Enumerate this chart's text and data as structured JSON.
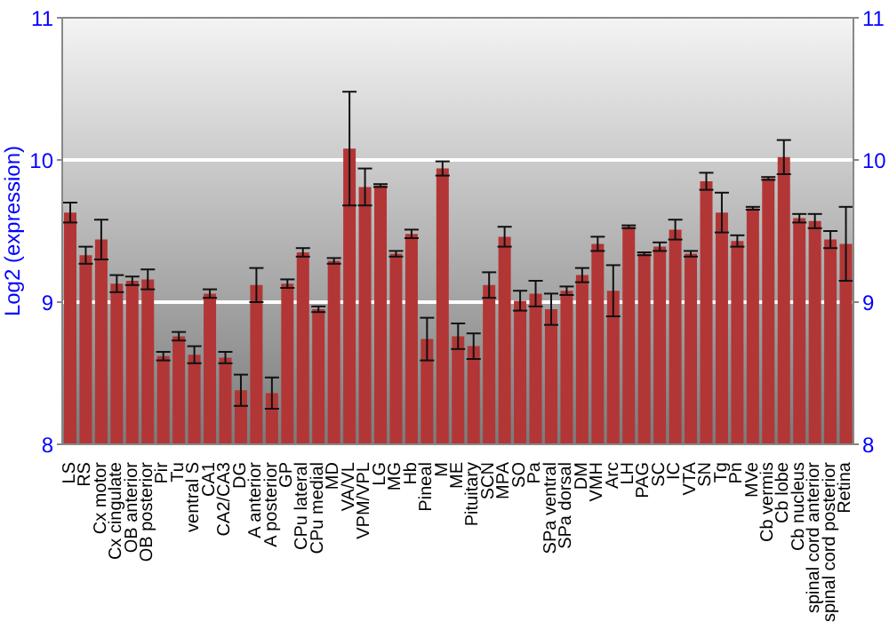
{
  "chart_data": {
    "type": "bar",
    "ylabel": "Log2 (expression)",
    "categories": [
      "LS",
      "RS",
      "Cx motor",
      "Cx cingulate",
      "OB anterior",
      "OB posterior",
      "Pir",
      "Tu",
      "ventral S",
      "CA1",
      "CA2/CA3",
      "DG",
      "A anterior",
      "A posterior",
      "GP",
      "CPu lateral",
      "CPu medial",
      "MD",
      "VA/VL",
      "VPM/VPL",
      "LG",
      "MG",
      "Hb",
      "Pineal",
      "M",
      "ME",
      "Pituitary",
      "SCN",
      "MPA",
      "SO",
      "Pa",
      "SPa ventral",
      "SPa dorsal",
      "DM",
      "VMH",
      "Arc",
      "LH",
      "PAG",
      "SC",
      "IC",
      "VTA",
      "SN",
      "Tg",
      "Pn",
      "MVe",
      "Cb vermis",
      "Cb lobe",
      "Cb nucleus",
      "spinal cord anterior",
      "spinal cord posterior",
      "Retina"
    ],
    "values": [
      9.63,
      9.33,
      9.44,
      9.13,
      9.15,
      9.16,
      8.62,
      8.76,
      8.63,
      9.06,
      8.61,
      8.38,
      9.12,
      8.36,
      9.13,
      9.35,
      8.95,
      9.29,
      10.08,
      9.81,
      9.82,
      9.34,
      9.48,
      8.74,
      9.94,
      8.76,
      8.69,
      9.12,
      9.46,
      9.01,
      9.06,
      8.95,
      9.08,
      9.19,
      9.41,
      9.08,
      9.53,
      9.34,
      9.39,
      9.51,
      9.34,
      9.85,
      9.63,
      9.43,
      9.66,
      9.87,
      10.02,
      9.59,
      9.57,
      9.44,
      9.41
    ],
    "errors": [
      0.07,
      0.06,
      0.14,
      0.06,
      0.03,
      0.07,
      0.03,
      0.03,
      0.06,
      0.03,
      0.04,
      0.11,
      0.12,
      0.11,
      0.03,
      0.03,
      0.02,
      0.02,
      0.4,
      0.13,
      0.01,
      0.02,
      0.03,
      0.15,
      0.05,
      0.09,
      0.09,
      0.09,
      0.07,
      0.07,
      0.09,
      0.11,
      0.03,
      0.05,
      0.05,
      0.18,
      0.01,
      0.01,
      0.03,
      0.07,
      0.02,
      0.06,
      0.14,
      0.04,
      0.01,
      0.01,
      0.12,
      0.03,
      0.05,
      0.06,
      0.26
    ],
    "color": "#b23636",
    "ylim": [
      8,
      11
    ],
    "yticks": [
      8,
      9,
      10,
      11
    ],
    "y2lim": [
      8,
      11
    ],
    "y2ticks": [
      8,
      9,
      10,
      11
    ],
    "grid": "y",
    "legend": false
  }
}
